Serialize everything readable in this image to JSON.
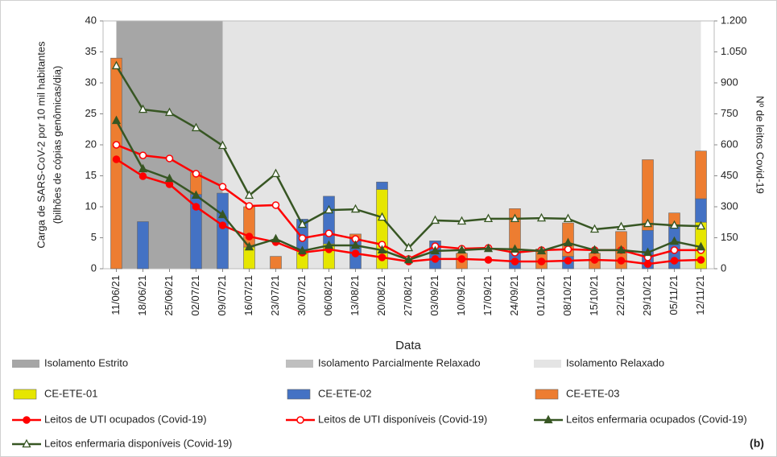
{
  "chart_data": {
    "type": "combo",
    "panel_label": "(b)",
    "x_label": "Data",
    "y_label": [
      "Carga de SARS-CoV-2 por 10 mil habitantes",
      "(bilhões de cópias genômicas/dia)"
    ],
    "y2_label": "Nº de leitos Covid-19",
    "categories": [
      "11/06/21",
      "18/06/21",
      "25/06/21",
      "02/07/21",
      "09/07/21",
      "16/07/21",
      "23/07/21",
      "30/07/21",
      "06/08/21",
      "13/08/21",
      "20/08/21",
      "27/08/21",
      "03/09/21",
      "10/09/21",
      "17/09/21",
      "24/09/21",
      "01/10/21",
      "08/10/21",
      "15/10/21",
      "22/10/21",
      "29/10/21",
      "05/11/21",
      "12/11/21"
    ],
    "ylim": [
      0,
      40
    ],
    "yticks": [
      0,
      5,
      10,
      15,
      20,
      25,
      30,
      35,
      40
    ],
    "y2lim": [
      0,
      1200
    ],
    "y2ticks": [
      0,
      150,
      300,
      450,
      600,
      750,
      900,
      {
        "value": 1050,
        "label": "1.050"
      },
      {
        "value": 1200,
        "label": "1.200"
      }
    ],
    "periods": [
      {
        "name": "Isolamento Estrito",
        "color": "#a6a6a6",
        "start": "11/06/21",
        "end": "09/07/21"
      },
      {
        "name": "Isolamento Parcialmente Relaxado",
        "color": "#bfbfbf"
      },
      {
        "name": "Isolamento Relaxado",
        "color": "#e4e4e4",
        "start": "09/07/21",
        "end": "12/11/21"
      }
    ],
    "series": [
      {
        "name": "CE-ETE-01",
        "type": "bar",
        "color": "#e6e600",
        "values": [
          0,
          0,
          0,
          0,
          0,
          3.5,
          0,
          3,
          4,
          0,
          12.8,
          0,
          0,
          0,
          0,
          0,
          0,
          0,
          0,
          0,
          0,
          0,
          7.5
        ]
      },
      {
        "name": "CE-ETE-02",
        "type": "bar",
        "color": "#4472c4",
        "values": [
          0,
          7.6,
          0,
          12,
          12.2,
          0,
          0,
          5,
          7.7,
          4.8,
          1.2,
          0,
          4.5,
          0,
          0,
          2.5,
          0,
          2,
          0,
          0,
          6.2,
          6.8,
          3.8
        ]
      },
      {
        "name": "CE-ETE-03",
        "type": "bar",
        "color": "#ed7d31",
        "values": [
          34,
          0,
          0,
          3.5,
          0,
          6.5,
          2,
          0,
          0,
          0.8,
          0,
          0,
          0,
          2.5,
          0,
          7.2,
          3.2,
          5.4,
          2.5,
          6,
          11.4,
          2.2,
          7.7
        ]
      },
      {
        "name": "Leitos de UTI ocupados (Covid-19)",
        "type": "line",
        "axis": "y2",
        "marker": "circle",
        "filled": true,
        "color": "#ff0000",
        "values": [
          530,
          448,
          409,
          300,
          210,
          156,
          129,
          78,
          94,
          74,
          55,
          35,
          47,
          47,
          43,
          35,
          35,
          39,
          43,
          39,
          23,
          39,
          43
        ]
      },
      {
        "name": "Leitos de UTI disponíveis (Covid-19)",
        "type": "line",
        "axis": "y2",
        "marker": "circle",
        "filled": false,
        "color": "#ff0000",
        "values": [
          600,
          549,
          534,
          460,
          397,
          304,
          308,
          148,
          171,
          144,
          117,
          47,
          109,
          97,
          101,
          78,
          90,
          94,
          90,
          90,
          55,
          90,
          90
        ]
      },
      {
        "name": "Leitos enfermaria ocupados (Covid-19)",
        "type": "line",
        "axis": "y2",
        "marker": "triangle",
        "filled": true,
        "color": "#375623",
        "values": [
          717,
          483,
          436,
          355,
          261,
          105,
          144,
          86,
          113,
          113,
          90,
          43,
          86,
          90,
          97,
          94,
          86,
          125,
          90,
          90,
          78,
          132,
          105
        ]
      },
      {
        "name": "Leitos enfermaria disponíveis (Covid-19)",
        "type": "line",
        "axis": "y2",
        "marker": "triangle",
        "filled": false,
        "color": "#375623",
        "values": [
          982,
          771,
          756,
          682,
          596,
          355,
          460,
          214,
          284,
          288,
          249,
          101,
          234,
          230,
          242,
          242,
          245,
          242,
          191,
          203,
          218,
          210,
          206
        ]
      }
    ]
  }
}
